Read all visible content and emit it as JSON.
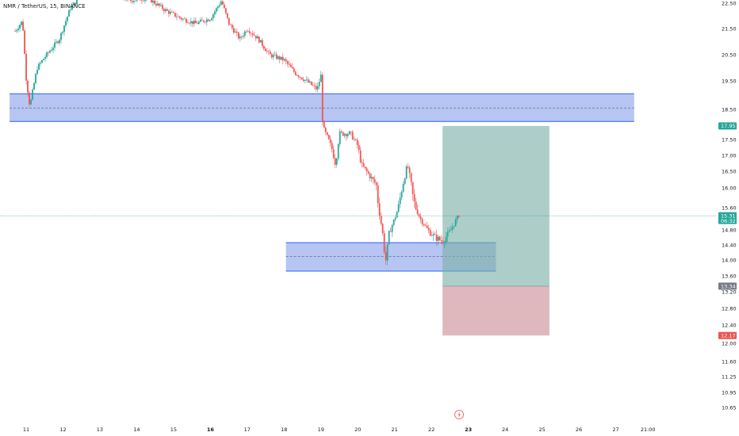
{
  "header": {
    "title": "NMR / TetherUS, 15, BINANCE"
  },
  "colors": {
    "up": "#26a69a",
    "down": "#ef5350",
    "zone_fill": "rgba(93,127,224,0.45)",
    "zone_line": "#2962ff",
    "target_fill": "rgba(122,176,166,0.62)",
    "stop_fill": "rgba(204,140,149,0.62)",
    "price_line": "#26a69a",
    "axis_text": "#131722"
  },
  "chart_data": {
    "type": "candlestick",
    "title": "NMR / TetherUS, 15, BINANCE",
    "x_ticks": [
      {
        "label": "11",
        "x": 11
      },
      {
        "label": "12",
        "x": 12
      },
      {
        "label": "13",
        "x": 13
      },
      {
        "label": "14",
        "x": 14
      },
      {
        "label": "15",
        "x": 15
      },
      {
        "label": "16",
        "x": 16
      },
      {
        "label": "17",
        "x": 17
      },
      {
        "label": "18",
        "x": 18
      },
      {
        "label": "19",
        "x": 19
      },
      {
        "label": "20",
        "x": 20
      },
      {
        "label": "21",
        "x": 21
      },
      {
        "label": "22",
        "x": 22
      },
      {
        "label": "23",
        "x": 23
      },
      {
        "label": "24",
        "x": 24
      },
      {
        "label": "25",
        "x": 25
      },
      {
        "label": "26",
        "x": 26
      },
      {
        "label": "27",
        "x": 27
      },
      {
        "label": "21:00",
        "x": 27.875
      }
    ],
    "bold_x_ticks": [
      "16",
      "23"
    ],
    "y_ticks": [
      "22.50",
      "21.50",
      "20.50",
      "19.50",
      "18.50",
      "17.50",
      "17.00",
      "16.50",
      "16.00",
      "15.60",
      "14.80",
      "14.40",
      "14.00",
      "13.60",
      "13.20",
      "12.80",
      "12.40",
      "12.00",
      "11.60",
      "11.25",
      "10.95",
      "10.65"
    ],
    "price_path": [
      [
        10.7,
        21.4
      ],
      [
        10.9,
        21.8
      ],
      [
        11.0,
        19.6
      ],
      [
        11.1,
        18.6
      ],
      [
        11.3,
        20.0
      ],
      [
        11.5,
        20.4
      ],
      [
        11.9,
        21.1
      ],
      [
        12.2,
        22.3
      ],
      [
        12.6,
        23.0
      ],
      [
        13.0,
        23.1
      ],
      [
        13.4,
        22.9
      ],
      [
        13.8,
        22.6
      ],
      [
        14.3,
        22.7
      ],
      [
        14.8,
        22.2
      ],
      [
        15.2,
        21.9
      ],
      [
        15.6,
        21.7
      ],
      [
        16.0,
        21.9
      ],
      [
        16.3,
        22.6
      ],
      [
        16.5,
        21.7
      ],
      [
        16.8,
        21.1
      ],
      [
        17.0,
        21.5
      ],
      [
        17.3,
        21.1
      ],
      [
        17.6,
        20.5
      ],
      [
        18.0,
        20.3
      ],
      [
        18.3,
        19.8
      ],
      [
        18.6,
        19.5
      ],
      [
        18.9,
        19.2
      ],
      [
        19.0,
        19.7
      ],
      [
        19.05,
        17.9
      ],
      [
        19.2,
        17.5
      ],
      [
        19.3,
        17.2
      ],
      [
        19.4,
        16.7
      ],
      [
        19.5,
        17.7
      ],
      [
        19.8,
        17.7
      ],
      [
        20.0,
        17.3
      ],
      [
        20.1,
        16.7
      ],
      [
        20.3,
        16.4
      ],
      [
        20.5,
        16.1
      ],
      [
        20.6,
        15.3
      ],
      [
        20.7,
        14.5
      ],
      [
        20.75,
        13.9
      ],
      [
        20.85,
        14.7
      ],
      [
        21.0,
        15.2
      ],
      [
        21.2,
        16.0
      ],
      [
        21.35,
        16.7
      ],
      [
        21.5,
        15.8
      ],
      [
        21.7,
        15.2
      ],
      [
        21.9,
        14.8
      ],
      [
        22.1,
        14.6
      ],
      [
        22.3,
        14.5
      ],
      [
        22.5,
        14.75
      ],
      [
        22.75,
        15.35
      ]
    ],
    "price_line": 15.31,
    "zones": [
      {
        "x_start": 10.55,
        "x_end": 27.5,
        "y_low": 18.1,
        "y_high": 19.05,
        "mid": 18.55
      },
      {
        "x_start": 18.05,
        "x_end": 23.75,
        "y_low": 13.72,
        "y_high": 14.46,
        "mid": 14.09
      }
    ],
    "position": {
      "x_start": 22.3,
      "x_end": 25.2,
      "target": 17.95,
      "entry": 13.34,
      "stop": 12.17
    },
    "price_labels": [
      {
        "text": "17.95",
        "value": 17.95,
        "color": "#26a69a"
      },
      {
        "text": "15.31",
        "sub": "06:32",
        "value": 15.31,
        "color": "#26a69a"
      },
      {
        "text": "13.34",
        "value": 13.34,
        "color": "#787b86"
      },
      {
        "text": "12.17",
        "value": 12.17,
        "color": "#ef5350"
      }
    ],
    "y_range": [
      10.6,
      23.0
    ],
    "x_range": [
      10.55,
      28.5
    ],
    "grid": false,
    "legend": "none"
  }
}
